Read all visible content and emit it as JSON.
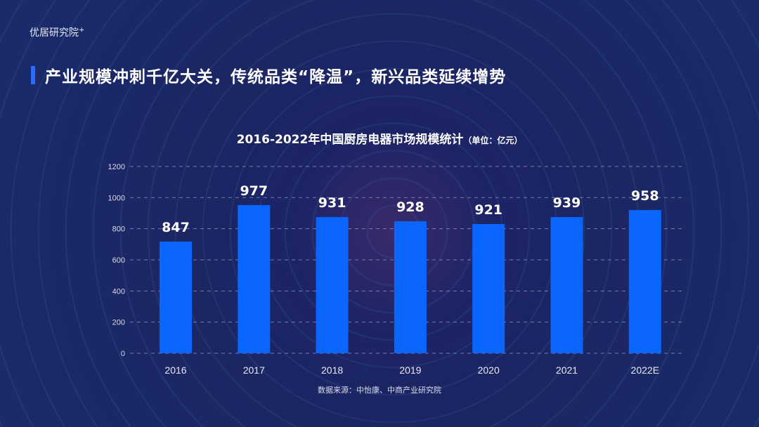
{
  "brand": {
    "name": "优居研究院",
    "mark": "+"
  },
  "headline": "产业规模冲刺千亿大关，传统品类“降温”，新兴品类延续增势",
  "colors": {
    "bar": "#0a66ff",
    "accent": "#2d6cff",
    "background": "#1d2466"
  },
  "chart_data": {
    "type": "bar",
    "title": "2016-2022年中国厨房电器市场规模统计",
    "unit": "（单位：亿元）",
    "categories": [
      "2016",
      "2017",
      "2018",
      "2019",
      "2020",
      "2021",
      "2022E"
    ],
    "values": [
      847,
      977,
      931,
      928,
      921,
      939,
      958
    ],
    "bar_axis_values": [
      717,
      952,
      875,
      848,
      830,
      875,
      920
    ],
    "yticks": [
      "0",
      "200",
      "400",
      "600",
      "800",
      "1000",
      "1200"
    ],
    "ylim": [
      0,
      1200
    ],
    "grid": "horizontal dashed"
  },
  "source": "数据来源：中怡康、中商产业研究院"
}
